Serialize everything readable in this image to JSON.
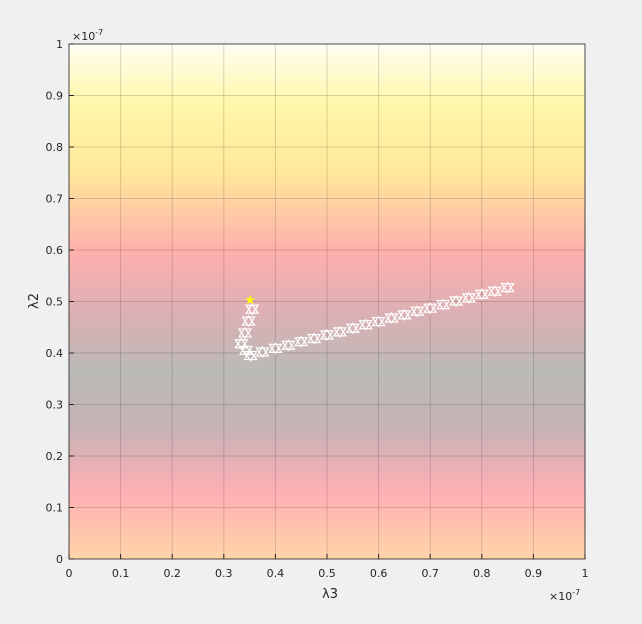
{
  "chart_data": {
    "type": "scatter",
    "xlabel": "λ3",
    "ylabel": "λ2",
    "x_multiplier": {
      "base": "×10",
      "exponent": "-7"
    },
    "y_multiplier": {
      "base": "×10",
      "exponent": "-7"
    },
    "xlim": [
      0,
      1
    ],
    "ylim": [
      0,
      1
    ],
    "xticks": [
      0,
      0.1,
      0.2,
      0.3,
      0.4,
      0.5,
      0.6,
      0.7,
      0.8,
      0.9,
      1
    ],
    "yticks": [
      0,
      0.1,
      0.2,
      0.3,
      0.4,
      0.5,
      0.6,
      0.7,
      0.8,
      0.9,
      1
    ],
    "grid": true,
    "series": [
      {
        "color": "#ffffff",
        "marker": "triangle",
        "x": [
          0.355,
          0.348,
          0.341,
          0.334,
          0.343,
          0.352,
          0.375,
          0.4,
          0.425,
          0.45,
          0.475,
          0.5,
          0.525,
          0.55,
          0.575,
          0.6,
          0.625,
          0.65,
          0.675,
          0.7,
          0.725,
          0.75,
          0.775,
          0.8,
          0.825,
          0.85
        ],
        "y": [
          0.485,
          0.462,
          0.439,
          0.418,
          0.405,
          0.395,
          0.402,
          0.409,
          0.415,
          0.422,
          0.428,
          0.435,
          0.441,
          0.448,
          0.455,
          0.461,
          0.468,
          0.474,
          0.481,
          0.487,
          0.494,
          0.501,
          0.507,
          0.514,
          0.52,
          0.527
        ]
      },
      {
        "color": "#ffff00",
        "marker": "star",
        "x": [
          0.351
        ],
        "y": [
          0.503
        ]
      }
    ]
  }
}
